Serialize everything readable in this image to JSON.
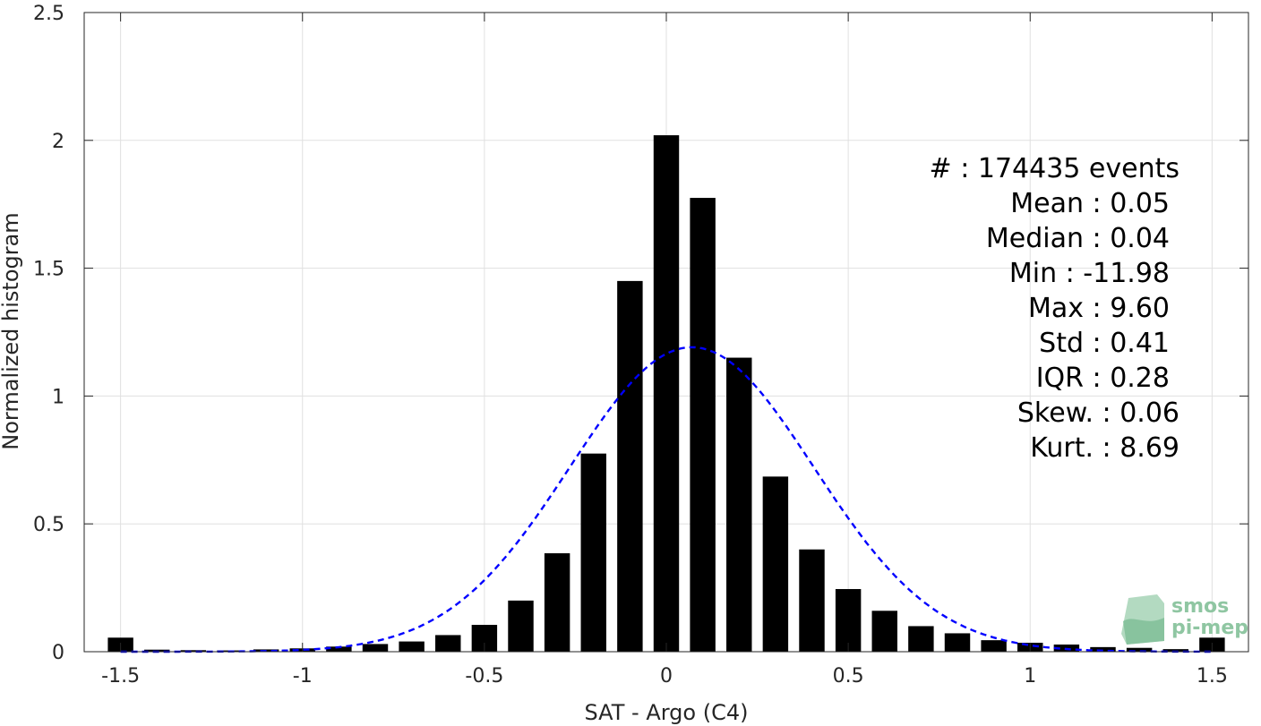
{
  "chart_data": {
    "type": "bar",
    "xlabel": "SAT - Argo (C4)",
    "ylabel": "Normalized histogram",
    "xlim": [
      -1.6,
      1.6
    ],
    "ylim": [
      0,
      2.5
    ],
    "grid": true,
    "xticks": [
      -1.5,
      -1,
      -0.5,
      0,
      0.5,
      1,
      1.5
    ],
    "xtick_labels": [
      "-1.5",
      "-1",
      "-0.5",
      "0",
      "0.5",
      "1",
      "1.5"
    ],
    "yticks": [
      0,
      0.5,
      1,
      1.5,
      2,
      2.5
    ],
    "ytick_labels": [
      "0",
      "0.5",
      "1",
      "1.5",
      "2",
      "2.5"
    ],
    "bin_width": 0.1,
    "bar_width": 0.07,
    "bins": [
      {
        "x": -1.5,
        "y": 0.055
      },
      {
        "x": -1.4,
        "y": 0.008
      },
      {
        "x": -1.3,
        "y": 0.006
      },
      {
        "x": -1.2,
        "y": 0.005
      },
      {
        "x": -1.1,
        "y": 0.009
      },
      {
        "x": -1.0,
        "y": 0.013
      },
      {
        "x": -0.9,
        "y": 0.02
      },
      {
        "x": -0.8,
        "y": 0.03
      },
      {
        "x": -0.7,
        "y": 0.04
      },
      {
        "x": -0.6,
        "y": 0.065
      },
      {
        "x": -0.5,
        "y": 0.105
      },
      {
        "x": -0.4,
        "y": 0.2
      },
      {
        "x": -0.3,
        "y": 0.385
      },
      {
        "x": -0.2,
        "y": 0.775
      },
      {
        "x": -0.1,
        "y": 1.45
      },
      {
        "x": 0.0,
        "y": 2.02
      },
      {
        "x": 0.1,
        "y": 1.775
      },
      {
        "x": 0.2,
        "y": 1.15
      },
      {
        "x": 0.3,
        "y": 0.685
      },
      {
        "x": 0.4,
        "y": 0.4
      },
      {
        "x": 0.5,
        "y": 0.245
      },
      {
        "x": 0.6,
        "y": 0.16
      },
      {
        "x": 0.7,
        "y": 0.1
      },
      {
        "x": 0.8,
        "y": 0.072
      },
      {
        "x": 0.9,
        "y": 0.045
      },
      {
        "x": 1.0,
        "y": 0.035
      },
      {
        "x": 1.1,
        "y": 0.028
      },
      {
        "x": 1.2,
        "y": 0.018
      },
      {
        "x": 1.3,
        "y": 0.015
      },
      {
        "x": 1.4,
        "y": 0.01
      },
      {
        "x": 1.5,
        "y": 0.055
      }
    ],
    "fit_curve": {
      "style": "dashed",
      "color": "#0000ff",
      "mean": 0.07,
      "std": 0.335
    },
    "stats": [
      "#  : 174435 events",
      "Mean : 0.05",
      "Median : 0.04",
      "Min : -11.98",
      "Max : 9.60",
      "Std : 0.41",
      "IQR : 0.28",
      "Skew. : 0.06",
      "Kurt. : 8.69"
    ],
    "colors": {
      "bars": "#000000",
      "grid": "#e0e0e0",
      "axis": "#262626"
    }
  },
  "logo": {
    "line1": "smos",
    "line2": "pi-mep",
    "color": "#8fc6a2"
  }
}
